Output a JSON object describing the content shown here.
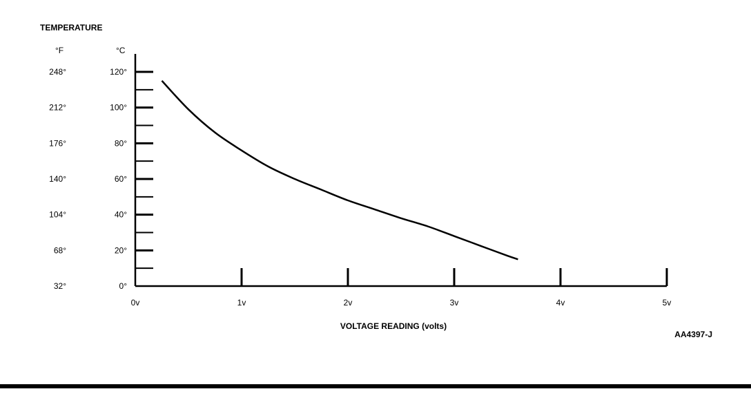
{
  "chart_data": {
    "type": "line",
    "title": "TEMPERATURE",
    "xlabel": "VOLTAGE READING (volts)",
    "ylabel_f": "°F",
    "ylabel_c": "°C",
    "figure_id": "AA4397-J",
    "xlim": [
      0,
      5
    ],
    "ylim": [
      0,
      120
    ],
    "x_ticks": [
      {
        "value": 0,
        "label": "0v"
      },
      {
        "value": 1,
        "label": "1v"
      },
      {
        "value": 2,
        "label": "2v"
      },
      {
        "value": 3,
        "label": "3v"
      },
      {
        "value": 4,
        "label": "4v"
      },
      {
        "value": 5,
        "label": "5v"
      }
    ],
    "y_ticks": [
      {
        "value": 0,
        "c": "0°",
        "f": "32°"
      },
      {
        "value": 20,
        "c": "20°",
        "f": "68°"
      },
      {
        "value": 40,
        "c": "40°",
        "f": "104°"
      },
      {
        "value": 60,
        "c": "60°",
        "f": "140°"
      },
      {
        "value": 80,
        "c": "80°",
        "f": "176°"
      },
      {
        "value": 100,
        "c": "100°",
        "f": "212°"
      },
      {
        "value": 120,
        "c": "120°",
        "f": "248°"
      }
    ],
    "y_minor_ticks": [
      10,
      30,
      50,
      70,
      90,
      110
    ],
    "series": [
      {
        "color": "#000000",
        "x": [
          0.25,
          0.5,
          0.75,
          1.0,
          1.25,
          1.5,
          1.75,
          2.0,
          2.25,
          2.5,
          2.75,
          3.0,
          3.25,
          3.5,
          3.6
        ],
        "y": [
          115,
          99,
          86,
          76,
          67,
          60,
          54,
          48,
          43,
          38,
          33.5,
          28,
          22.5,
          17,
          15
        ]
      }
    ]
  }
}
